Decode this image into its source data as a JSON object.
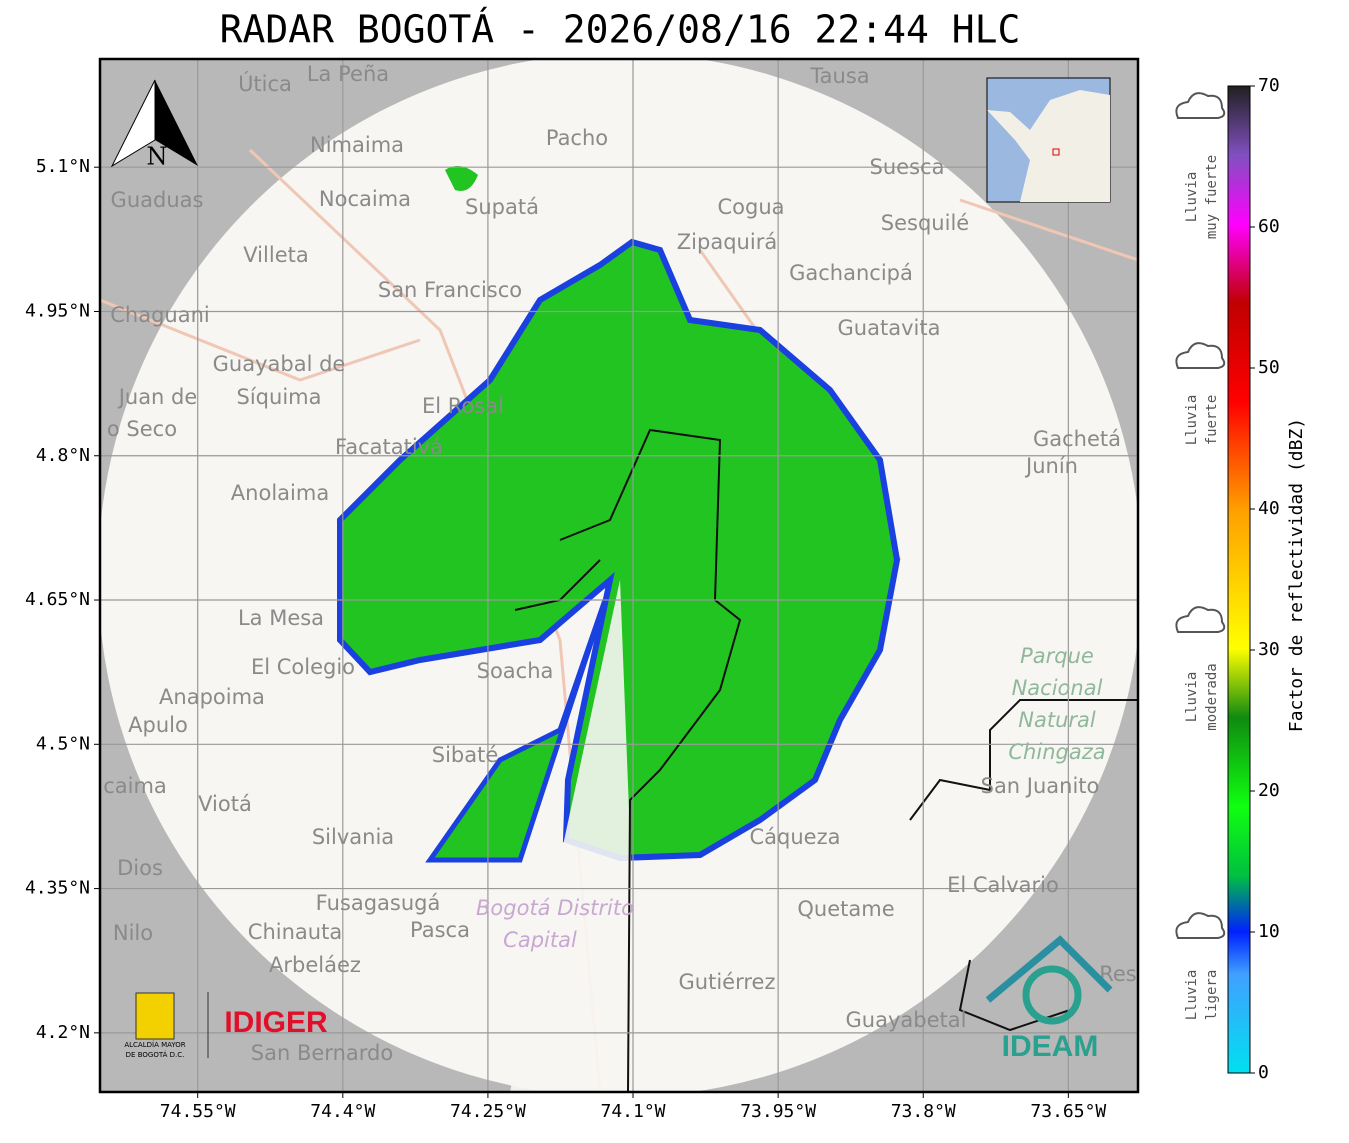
{
  "title": "RADAR BOGOTÁ - 2026/08/16 22:44 HLC",
  "map": {
    "xlim": [
      -74.651,
      -73.578
    ],
    "ylim": [
      4.1385,
      5.2125
    ],
    "grid": true,
    "xticks": [
      {
        "value": -74.55,
        "label": "74.55°W"
      },
      {
        "value": -74.4,
        "label": "74.4°W"
      },
      {
        "value": -74.25,
        "label": "74.25°W"
      },
      {
        "value": -74.1,
        "label": "74.1°W"
      },
      {
        "value": -73.95,
        "label": "73.95°W"
      },
      {
        "value": -73.8,
        "label": "73.8°W"
      },
      {
        "value": -73.65,
        "label": "73.65°W"
      }
    ],
    "yticks": [
      {
        "value": 5.1,
        "label": "5.1°N"
      },
      {
        "value": 4.95,
        "label": "4.95°N"
      },
      {
        "value": 4.8,
        "label": "4.8°N"
      },
      {
        "value": 4.65,
        "label": "4.65°N"
      },
      {
        "value": 4.5,
        "label": "4.5°N"
      },
      {
        "value": 4.35,
        "label": "4.35°N"
      },
      {
        "value": 4.2,
        "label": "4.2°N"
      }
    ],
    "north": "N",
    "places": [
      "La Peña",
      "Útica",
      "Tausa",
      "Pacho",
      "Nimaima",
      "Suesca",
      "Guaduas",
      "Nocaima",
      "Supatá",
      "Cogua",
      "Sesquilé",
      "Zipaquirá",
      "Villeta",
      "Gachancipá",
      "San Francisco",
      "Chaguani",
      "Guatavita",
      "Juan de",
      "o Seco",
      "El Rosal",
      "Facatativá",
      "Gachetá",
      "Junín",
      "Anolaima",
      "La Mesa",
      "El Colegio",
      "Soacha",
      "Anapoima",
      "Apulo",
      "Sibaté",
      "San Juanito",
      "caima",
      "Viotá",
      "Silvania",
      "Cáqueza",
      "Dios",
      "El Calvario",
      "Fusagasugá",
      "Quetame",
      "Nilo",
      "Chinauta",
      "Pasca",
      "Arbeláez",
      "Res",
      "Gutiérrez",
      "Guayabetal",
      "San Bernardo"
    ],
    "guayabal": [
      "Guayabal de",
      "Síquima"
    ],
    "park": [
      "Parque",
      "Nacional",
      "Natural",
      "Chingaza"
    ],
    "district": [
      "Bogotá Distrito",
      "Capital"
    ]
  },
  "colorbar": {
    "label": "Factor de reflectividad (dBZ)",
    "lim": [
      0,
      70
    ],
    "ticks": [
      0,
      10,
      20,
      30,
      40,
      50,
      60,
      70
    ]
  },
  "rain_levels": [
    [
      "Lluvia",
      "muy fuerte"
    ],
    [
      "Lluvia",
      "fuerte"
    ],
    [
      "Lluvia",
      "moderada"
    ],
    [
      "Lluvia",
      "ligera"
    ]
  ],
  "logos": {
    "alcaldia": [
      "ALCALDÍA MAYOR",
      "DE BOGOTÁ D.C."
    ],
    "idiger": "IDIGER",
    "ideam": "IDEAM"
  }
}
